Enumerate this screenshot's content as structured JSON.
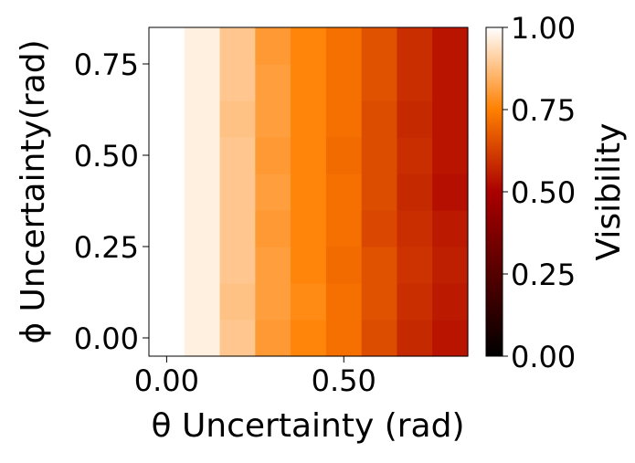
{
  "chart_data": {
    "type": "heatmap",
    "title": "",
    "xlabel": "θ Uncertainty (rad)",
    "ylabel": "ϕ Uncertainty(rad)",
    "x": [
      0.0,
      0.1,
      0.2,
      0.3,
      0.4,
      0.5,
      0.6,
      0.7,
      0.8
    ],
    "y": [
      0.0,
      0.1,
      0.2,
      0.3,
      0.4,
      0.5,
      0.6,
      0.7,
      0.8
    ],
    "xlim": [
      -0.05,
      0.85
    ],
    "ylim": [
      -0.05,
      0.85
    ],
    "xticks": [
      0.0,
      0.5
    ],
    "xtick_labels": [
      "0.00",
      "0.50"
    ],
    "yticks": [
      0.0,
      0.25,
      0.5,
      0.75
    ],
    "ytick_labels": [
      "0.00",
      "0.25",
      "0.50",
      "0.75"
    ],
    "values": [
      [
        1.0,
        0.97,
        0.89,
        0.8,
        0.76,
        0.72,
        0.65,
        0.58,
        0.54
      ],
      [
        1.0,
        0.97,
        0.88,
        0.81,
        0.77,
        0.72,
        0.66,
        0.59,
        0.55
      ],
      [
        1.0,
        0.97,
        0.89,
        0.81,
        0.76,
        0.71,
        0.66,
        0.6,
        0.56
      ],
      [
        1.0,
        0.97,
        0.89,
        0.8,
        0.76,
        0.72,
        0.64,
        0.59,
        0.55
      ],
      [
        1.0,
        0.97,
        0.89,
        0.81,
        0.76,
        0.72,
        0.65,
        0.58,
        0.53
      ],
      [
        1.0,
        0.97,
        0.89,
        0.8,
        0.76,
        0.71,
        0.65,
        0.59,
        0.54
      ],
      [
        1.0,
        0.97,
        0.88,
        0.81,
        0.76,
        0.72,
        0.65,
        0.58,
        0.54
      ],
      [
        1.0,
        0.97,
        0.89,
        0.81,
        0.76,
        0.72,
        0.66,
        0.59,
        0.54
      ],
      [
        1.0,
        0.97,
        0.89,
        0.8,
        0.76,
        0.72,
        0.66,
        0.59,
        0.54
      ]
    ],
    "colormap": "gist_heat",
    "colorbar": {
      "label": "Visibility",
      "range": [
        0.0,
        1.0
      ],
      "ticks": [
        0.0,
        0.25,
        0.5,
        0.75,
        1.0
      ],
      "tick_labels": [
        "0.00",
        "0.25",
        "0.50",
        "0.75",
        "1.00"
      ]
    },
    "grid": false
  }
}
